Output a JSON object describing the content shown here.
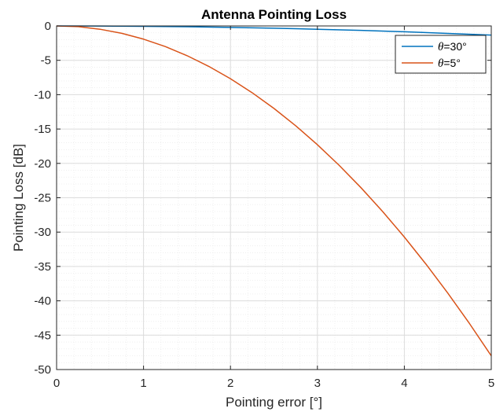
{
  "chart_data": {
    "type": "line",
    "title": "Antenna Pointing Loss",
    "xlabel": "Pointing error [°]",
    "ylabel": "Pointing Loss [dB]",
    "xlim": [
      0,
      5
    ],
    "ylim": [
      -50,
      0
    ],
    "xticks": [
      0,
      1,
      2,
      3,
      4,
      5
    ],
    "yticks": [
      0,
      -5,
      -10,
      -15,
      -20,
      -25,
      -30,
      -35,
      -40,
      -45,
      -50
    ],
    "grid": true,
    "minor_grid": true,
    "legend_position": "top-right",
    "series": [
      {
        "name": "θ=30°",
        "name_symbol": "θ",
        "name_suffix": "=30°",
        "color": "#0072BD",
        "x": [
          0,
          0.5,
          1,
          1.5,
          2,
          2.5,
          3,
          3.5,
          4,
          4.5,
          5
        ],
        "y": [
          0,
          -0.01,
          -0.05,
          -0.12,
          -0.21,
          -0.33,
          -0.48,
          -0.65,
          -0.85,
          -1.08,
          -1.33
        ]
      },
      {
        "name": "θ=5°",
        "name_symbol": "θ",
        "name_suffix": "=5°",
        "color": "#D95319",
        "x": [
          0,
          0.25,
          0.5,
          0.75,
          1,
          1.25,
          1.5,
          1.75,
          2,
          2.25,
          2.5,
          2.75,
          3,
          3.25,
          3.5,
          3.75,
          4,
          4.25,
          4.5,
          4.75,
          5
        ],
        "y": [
          0,
          -0.1,
          -0.48,
          -1.07,
          -1.92,
          -3.0,
          -4.32,
          -5.88,
          -7.68,
          -9.72,
          -12.0,
          -14.52,
          -17.28,
          -20.28,
          -23.52,
          -27.0,
          -30.72,
          -34.68,
          -38.88,
          -43.32,
          -48.0
        ]
      }
    ]
  }
}
